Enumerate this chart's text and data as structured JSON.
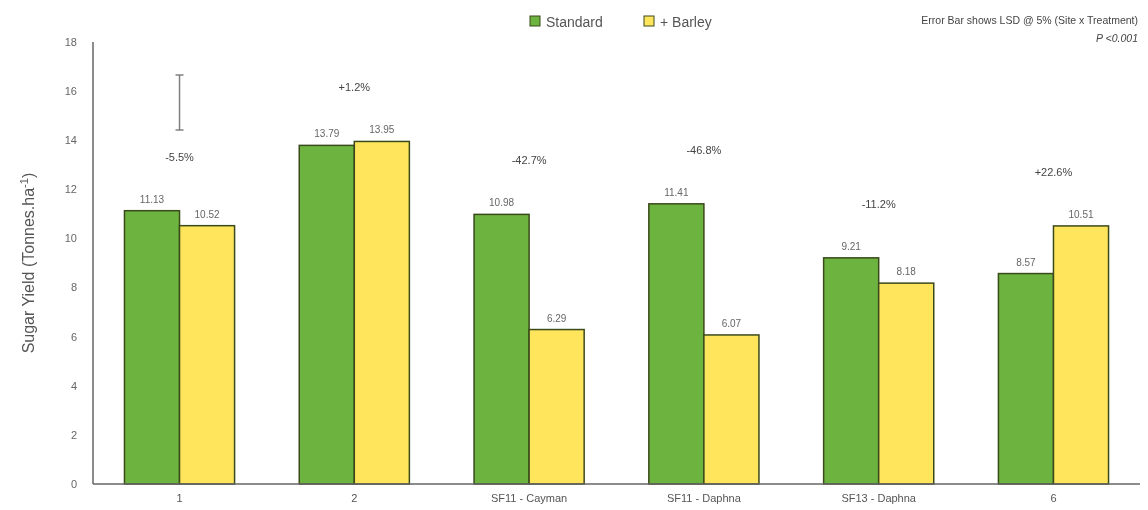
{
  "chart_data": {
    "type": "bar",
    "ylabel": "Sugar Yield (Tonnes.ha$^{-1}$)",
    "categories": [
      "1",
      "2",
      "SF11 - Cayman",
      "SF11 - Daphna",
      "SF13 - Daphna",
      "6"
    ],
    "series": [
      {
        "name": "Standard",
        "color": "#6db33f",
        "values": [
          11.13,
          13.79,
          10.98,
          11.41,
          9.21,
          8.57
        ]
      },
      {
        "name": "+ Barley",
        "color": "#ffe55c",
        "values": [
          10.52,
          13.95,
          6.29,
          6.07,
          8.18,
          10.51
        ]
      }
    ],
    "ylim": [
      0,
      18
    ],
    "yticks": [
      0,
      2,
      4,
      6,
      8,
      10,
      12,
      14,
      16,
      18
    ],
    "data_labels": true,
    "grid": false,
    "legend": "top",
    "annotations": [
      "Error Bar shows LSD @ 5% (Site x Treatment)",
      "P <0.001",
      "-5.5%",
      "+1.2%",
      "-42.7%",
      "-46.8%",
      "-11.2%",
      "+22.6%"
    ]
  }
}
